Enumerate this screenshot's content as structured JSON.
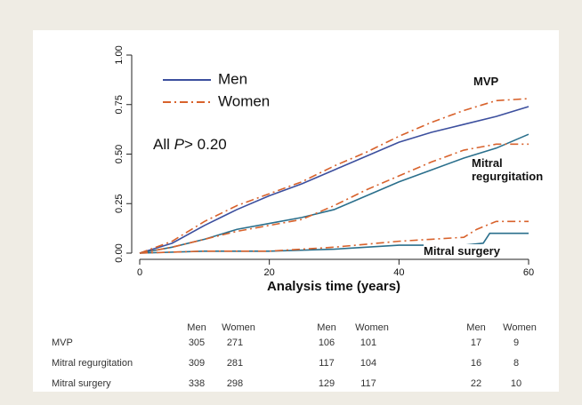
{
  "chart_data": {
    "type": "line",
    "xlabel": "Analysis time (years)",
    "pvalue": {
      "prefix": "All",
      "symbol": "P",
      "rest": "> 0.20"
    },
    "xlim": [
      0,
      60
    ],
    "xticks": [
      0,
      20,
      40,
      60
    ],
    "ylim": [
      0,
      1
    ],
    "yticks": [
      {
        "value": 0,
        "label": "0.00"
      },
      {
        "value": 0.25,
        "label": "0.25"
      },
      {
        "value": 0.5,
        "label": "0.50"
      },
      {
        "value": 0.75,
        "label": "0.75"
      },
      {
        "value": 1,
        "label": "1.00"
      }
    ],
    "legend": [
      {
        "name": "Men",
        "color": "#3c4f9e",
        "dash": "none"
      },
      {
        "name": "Women",
        "color": "#d8622c",
        "dash": "9 4 2 4"
      }
    ],
    "series": [
      {
        "name": "MVP",
        "group": 0,
        "color": "#3c4f9e",
        "x": [
          0,
          5,
          10,
          15,
          20,
          25,
          30,
          35,
          40,
          45,
          50,
          55,
          60
        ],
        "values": [
          0,
          0.05,
          0.14,
          0.22,
          0.29,
          0.35,
          0.42,
          0.49,
          0.56,
          0.61,
          0.65,
          0.69,
          0.74
        ]
      },
      {
        "name": "MVP",
        "group": 1,
        "color": "#d8622c",
        "x": [
          0,
          5,
          10,
          15,
          20,
          25,
          30,
          35,
          40,
          45,
          50,
          55,
          60
        ],
        "values": [
          0,
          0.06,
          0.16,
          0.24,
          0.3,
          0.36,
          0.44,
          0.51,
          0.59,
          0.66,
          0.72,
          0.77,
          0.78
        ]
      },
      {
        "name": "Mitral regurgitation",
        "group": 0,
        "color": "#2a6f8c",
        "x": [
          0,
          5,
          10,
          15,
          20,
          25,
          30,
          35,
          40,
          45,
          50,
          55,
          60
        ],
        "values": [
          0,
          0.03,
          0.07,
          0.12,
          0.15,
          0.18,
          0.22,
          0.29,
          0.36,
          0.42,
          0.48,
          0.53,
          0.6
        ]
      },
      {
        "name": "Mitral regurgitation",
        "group": 1,
        "color": "#d8622c",
        "x": [
          0,
          5,
          10,
          15,
          20,
          25,
          30,
          35,
          40,
          45,
          50,
          55,
          60
        ],
        "values": [
          0,
          0.03,
          0.07,
          0.11,
          0.14,
          0.17,
          0.24,
          0.32,
          0.39,
          0.46,
          0.52,
          0.55,
          0.55
        ]
      },
      {
        "name": "Mitral surgery",
        "group": 0,
        "color": "#2a6f8c",
        "x": [
          0,
          10,
          20,
          30,
          40,
          45,
          50,
          53,
          54,
          60
        ],
        "values": [
          0,
          0.01,
          0.01,
          0.02,
          0.04,
          0.04,
          0.04,
          0.05,
          0.1,
          0.1
        ]
      },
      {
        "name": "Mitral surgery",
        "group": 1,
        "color": "#d8622c",
        "x": [
          0,
          10,
          20,
          30,
          40,
          45,
          50,
          52,
          55,
          60
        ],
        "values": [
          0,
          0.01,
          0.01,
          0.03,
          0.06,
          0.07,
          0.08,
          0.12,
          0.16,
          0.16
        ]
      }
    ],
    "risk_table": {
      "columns": [
        "Men",
        "Women",
        "Men",
        "Women",
        "Men",
        "Women"
      ],
      "rows": [
        {
          "label": "MVP",
          "values": [
            305,
            271,
            106,
            101,
            17,
            9
          ]
        },
        {
          "label": "Mitral regurgitation",
          "values": [
            309,
            281,
            117,
            104,
            16,
            8
          ]
        },
        {
          "label": "Mitral surgery",
          "values": [
            338,
            298,
            129,
            117,
            22,
            10
          ]
        }
      ]
    }
  }
}
